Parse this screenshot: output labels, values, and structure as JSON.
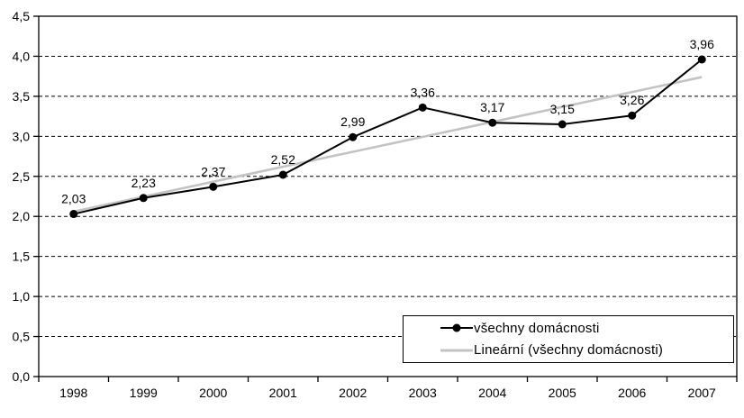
{
  "chart_data": {
    "type": "line",
    "title": "",
    "xlabel": "",
    "ylabel": "",
    "categories": [
      "1998",
      "1999",
      "2000",
      "2001",
      "2002",
      "2003",
      "2004",
      "2005",
      "2006",
      "2007"
    ],
    "series": [
      {
        "name": "všechny domácnosti",
        "values": [
          2.03,
          2.23,
          2.37,
          2.52,
          2.99,
          3.36,
          3.17,
          3.15,
          3.26,
          3.96
        ],
        "labels": [
          "2,03",
          "2,23",
          "2,37",
          "2,52",
          "2,99",
          "3,36",
          "3,17",
          "3,15",
          "3,26",
          "3,96"
        ],
        "color": "#000000",
        "marker": "circle"
      }
    ],
    "trendline": {
      "name": "Lineární (všechny domácnosti)",
      "based_on": "všechny domácnosti",
      "endpoints": [
        2.06,
        3.74
      ],
      "color": "#c3c3c3"
    },
    "ylim": [
      0,
      4.5
    ],
    "ytick_step": 0.5,
    "ytick_labels": [
      "0,0",
      "0,5",
      "1,0",
      "1,5",
      "2,0",
      "2,5",
      "3,0",
      "3,5",
      "4,0",
      "4,5"
    ],
    "grid": "horizontal-dashed",
    "axis_color": "#000000",
    "legend": {
      "position": "inside-bottom-right",
      "items": [
        {
          "label": "všechny domácnosti",
          "swatch": "line-with-marker",
          "color": "#000000"
        },
        {
          "label": "Lineární (všechny domácnosti)",
          "swatch": "line",
          "color": "#c3c3c3"
        }
      ]
    }
  }
}
